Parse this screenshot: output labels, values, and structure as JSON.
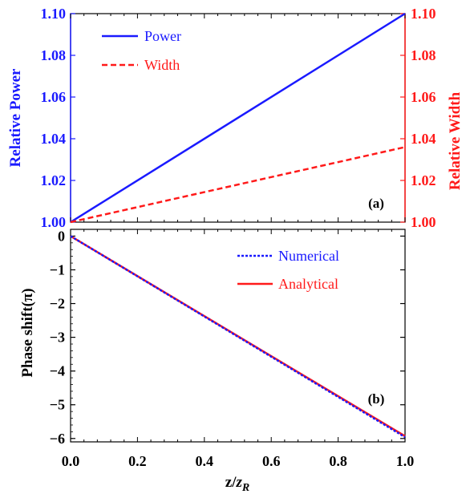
{
  "chart_data": [
    {
      "type": "line",
      "panel_label": "(a)",
      "ylabel_left": "Relative Power",
      "ylabel_right": "Relative Width",
      "xlim": [
        0,
        1
      ],
      "ylim_left": [
        1.0,
        1.1
      ],
      "ylim_right": [
        1.0,
        1.1
      ],
      "yticks_left": [
        "1.00",
        "1.02",
        "1.04",
        "1.06",
        "1.08",
        "1.10"
      ],
      "yticks_right": [
        "1.00",
        "1.02",
        "1.04",
        "1.06",
        "1.08",
        "1.10"
      ],
      "colors": {
        "left_axis": "#1a1aff",
        "right_axis": "#ff1a1a"
      },
      "series": [
        {
          "name": "Power",
          "color": "#1a1aff",
          "dash": "solid",
          "axis": "left",
          "x": [
            0,
            1
          ],
          "y": [
            1.0,
            1.1
          ]
        },
        {
          "name": "Width",
          "color": "#ff1a1a",
          "dash": "dashed",
          "axis": "right",
          "x": [
            0,
            1
          ],
          "y": [
            1.0,
            1.036
          ]
        }
      ],
      "legend_position": "top-left"
    },
    {
      "type": "line",
      "panel_label": "(b)",
      "ylabel": "Phase shift(π)",
      "xlabel_main": "z/",
      "xlabel_italic": "z",
      "xlabel_sub": "R",
      "xlim": [
        0,
        1
      ],
      "ylim": [
        -6.1,
        0.2
      ],
      "xticks": [
        "0.0",
        "0.2",
        "0.4",
        "0.6",
        "0.8",
        "1.0"
      ],
      "yticks": [
        "0",
        "−1",
        "−2",
        "−3",
        "−4",
        "−5",
        "−6"
      ],
      "series": [
        {
          "name": "Numerical",
          "color": "#1a1aff",
          "dash": "dotted",
          "x": [
            0,
            1
          ],
          "y": [
            0,
            -5.96
          ]
        },
        {
          "name": "Analytical",
          "color": "#ff1a1a",
          "dash": "solid",
          "x": [
            0,
            1
          ],
          "y": [
            0,
            -5.93
          ]
        }
      ],
      "legend_position": "top-right"
    }
  ]
}
